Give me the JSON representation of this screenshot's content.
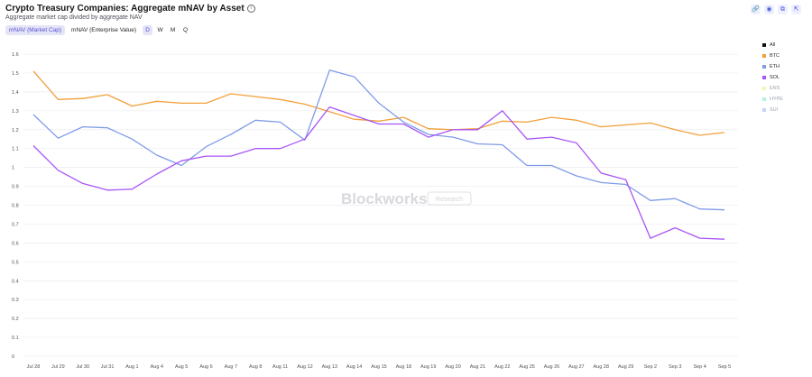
{
  "header": {
    "title": "Crypto Treasury Companies: Aggregate mNAV by Asset",
    "subtitle": "Aggregate market cap divided by aggregate NAV",
    "info_icon": "info-icon"
  },
  "controls": {
    "toggles": [
      "mNAV (Market Cap)",
      "mNAV (Enterprise Value)"
    ],
    "active_toggle": 0,
    "periods": [
      "D",
      "W",
      "M",
      "Q"
    ],
    "active_period": 0
  },
  "toolbar": {
    "icons": [
      "link-icon",
      "camera-icon",
      "copy-icon",
      "expand-icon"
    ]
  },
  "watermark": {
    "brand": "Blockworks",
    "tag": "Research"
  },
  "legend": [
    {
      "label": "All",
      "color": "#111111",
      "muted": false
    },
    {
      "label": "BTC",
      "color": "#f2a03a",
      "muted": false
    },
    {
      "label": "ETH",
      "color": "#7f9ce8",
      "muted": false
    },
    {
      "label": "SOL",
      "color": "#a855f7",
      "muted": false
    },
    {
      "label": "ENS",
      "color": "#f5f5b0",
      "muted": true
    },
    {
      "label": "HYPE",
      "color": "#b4f0e0",
      "muted": true
    },
    {
      "label": "SUI",
      "color": "#c7d2fe",
      "muted": true
    }
  ],
  "chart_data": {
    "type": "line",
    "categories": [
      "Jul 28",
      "Jul 29",
      "Jul 30",
      "Jul 31",
      "Aug 1",
      "Aug 4",
      "Aug 5",
      "Aug 6",
      "Aug 7",
      "Aug 8",
      "Aug 11",
      "Aug 12",
      "Aug 13",
      "Aug 14",
      "Aug 15",
      "Aug 18",
      "Aug 19",
      "Aug 20",
      "Aug 21",
      "Aug 22",
      "Aug 25",
      "Aug 26",
      "Aug 27",
      "Aug 28",
      "Aug 29",
      "Sep 2",
      "Sep 3",
      "Sep 4",
      "Sep 5"
    ],
    "yticks": [
      "0",
      "0.1",
      "0.2",
      "0.3",
      "0.4",
      "0.5",
      "0.6",
      "0.7",
      "0.8",
      "0.9",
      "1",
      "1.1",
      "1.2",
      "1.3",
      "1.4",
      "1.5",
      "1.6"
    ],
    "ylim": [
      0,
      1.6
    ],
    "grid": true,
    "legend_position": "right",
    "series": [
      {
        "name": "BTC",
        "color": "#f2a03a",
        "values": [
          1.51,
          1.36,
          1.365,
          1.385,
          1.325,
          1.35,
          1.34,
          1.34,
          1.39,
          1.375,
          1.36,
          1.335,
          1.295,
          1.255,
          1.245,
          1.265,
          1.205,
          1.2,
          1.205,
          1.245,
          1.24,
          1.265,
          1.25,
          1.215,
          1.225,
          1.235,
          1.2,
          1.17,
          1.185
        ]
      },
      {
        "name": "ETH",
        "color": "#7f9ce8",
        "values": [
          1.28,
          1.155,
          1.215,
          1.21,
          1.15,
          1.065,
          1.01,
          1.11,
          1.175,
          1.25,
          1.24,
          1.145,
          1.515,
          1.48,
          1.34,
          1.24,
          1.175,
          1.16,
          1.125,
          1.12,
          1.01,
          1.01,
          0.955,
          0.92,
          0.91,
          0.825,
          0.835,
          0.78,
          0.775
        ]
      },
      {
        "name": "SOL",
        "color": "#a855f7",
        "values": [
          1.115,
          0.985,
          0.915,
          0.88,
          0.885,
          0.965,
          1.035,
          1.06,
          1.06,
          1.1,
          1.1,
          1.15,
          1.32,
          1.275,
          1.23,
          1.23,
          1.16,
          1.2,
          1.2,
          1.3,
          1.15,
          1.16,
          1.13,
          0.97,
          0.935,
          0.625,
          0.68,
          0.625,
          0.62
        ]
      }
    ]
  }
}
